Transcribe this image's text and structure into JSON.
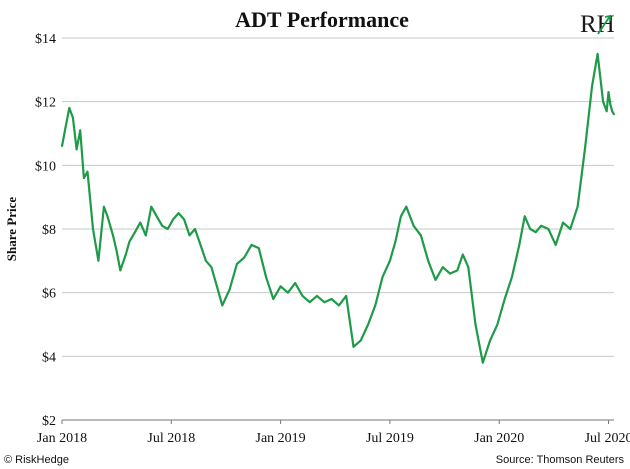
{
  "chart_data": {
    "type": "line",
    "title": "ADT Performance",
    "ylabel": "Share Price",
    "xlabel": "",
    "ylim": [
      2,
      14
    ],
    "y_ticks": [
      {
        "value": 2,
        "label": "$2"
      },
      {
        "value": 4,
        "label": "$4"
      },
      {
        "value": 6,
        "label": "$6"
      },
      {
        "value": 8,
        "label": "$8"
      },
      {
        "value": 10,
        "label": "$10"
      },
      {
        "value": 12,
        "label": "$12"
      },
      {
        "value": 14,
        "label": "$14"
      }
    ],
    "x_range": [
      0,
      30.3
    ],
    "x_unit": "months since Jan 2018",
    "x_ticks": [
      {
        "value": 0,
        "label": "Jan 2018"
      },
      {
        "value": 6,
        "label": "Jul 2018"
      },
      {
        "value": 12,
        "label": "Jan 2019"
      },
      {
        "value": 18,
        "label": "Jul 2019"
      },
      {
        "value": 24,
        "label": "Jan 2020"
      },
      {
        "value": 30,
        "label": "Jul 2020"
      }
    ],
    "grid": "horizontal",
    "series": [
      {
        "name": "ADT",
        "color": "#1e9a48",
        "x": [
          0,
          0.2,
          0.4,
          0.6,
          0.8,
          1.0,
          1.2,
          1.4,
          1.7,
          2.0,
          2.3,
          2.5,
          2.8,
          3.0,
          3.2,
          3.5,
          3.7,
          4.0,
          4.3,
          4.6,
          4.9,
          5.2,
          5.5,
          5.8,
          6.1,
          6.4,
          6.7,
          7.0,
          7.3,
          7.6,
          7.9,
          8.2,
          8.5,
          8.8,
          9.2,
          9.6,
          10.0,
          10.4,
          10.8,
          11.2,
          11.6,
          12.0,
          12.4,
          12.8,
          13.2,
          13.6,
          14.0,
          14.4,
          14.8,
          15.2,
          15.6,
          16.0,
          16.4,
          16.8,
          17.2,
          17.6,
          18.0,
          18.3,
          18.6,
          18.9,
          19.3,
          19.7,
          20.1,
          20.5,
          20.9,
          21.3,
          21.7,
          22.0,
          22.3,
          22.7,
          23.1,
          23.5,
          23.9,
          24.3,
          24.7,
          25.1,
          25.4,
          25.7,
          26.0,
          26.3,
          26.7,
          27.1,
          27.5,
          27.9,
          28.3,
          28.7,
          29.1,
          29.4,
          29.7,
          29.9,
          30.0,
          30.1,
          30.2,
          30.3
        ],
        "values": [
          10.6,
          11.2,
          11.8,
          11.5,
          10.5,
          11.1,
          9.6,
          9.8,
          8.0,
          7.0,
          8.7,
          8.4,
          7.8,
          7.3,
          6.7,
          7.2,
          7.6,
          7.9,
          8.2,
          7.8,
          8.7,
          8.4,
          8.1,
          8.0,
          8.3,
          8.5,
          8.3,
          7.8,
          8.0,
          7.5,
          7.0,
          6.8,
          6.2,
          5.6,
          6.1,
          6.9,
          7.1,
          7.5,
          7.4,
          6.5,
          5.8,
          6.2,
          6.0,
          6.3,
          5.9,
          5.7,
          5.9,
          5.7,
          5.8,
          5.6,
          5.9,
          4.3,
          4.5,
          5.0,
          5.6,
          6.5,
          7.0,
          7.6,
          8.4,
          8.7,
          8.1,
          7.8,
          7.0,
          6.4,
          6.8,
          6.6,
          6.7,
          7.2,
          6.8,
          5.0,
          3.8,
          4.5,
          5.0,
          5.8,
          6.5,
          7.5,
          8.4,
          8.0,
          7.9,
          8.1,
          8.0,
          7.5,
          8.2,
          8.0,
          8.7,
          10.5,
          12.5,
          13.5,
          12.0,
          11.7,
          12.3,
          11.9,
          11.7,
          11.6
        ]
      }
    ]
  },
  "logo": {
    "text": "RH",
    "name": "RiskHedge logo"
  },
  "footer": {
    "left": "© RiskHedge",
    "right": "Source: Thomson Reuters"
  }
}
